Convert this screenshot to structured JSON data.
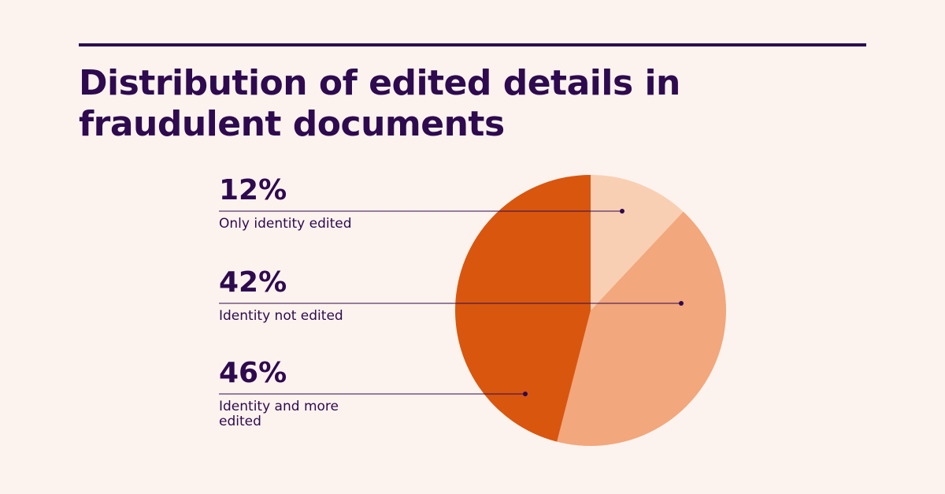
{
  "chart_data": {
    "type": "pie",
    "title": "Distribution of edited details in fraudulent documents",
    "categories": [
      "Only identity edited",
      "Identity not edited",
      "Identity and more edited"
    ],
    "values": [
      12,
      42,
      46
    ],
    "value_labels": [
      "12%",
      "42%",
      "46%"
    ],
    "colors": [
      "#f9cfb3",
      "#f2a77c",
      "#d9560f"
    ]
  }
}
